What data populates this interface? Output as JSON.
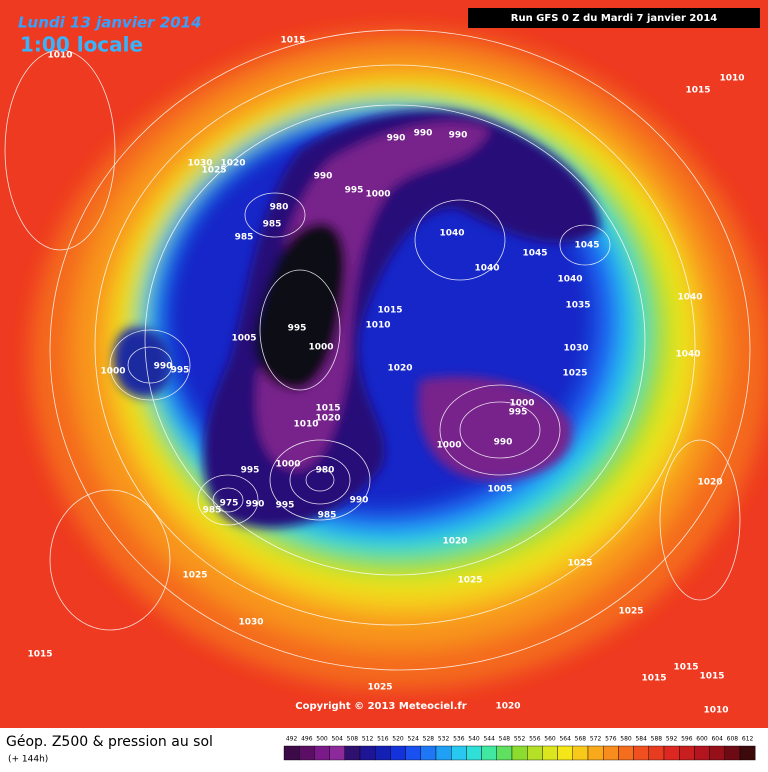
{
  "header": {
    "date": "Lundi 13 janvier 2014",
    "time": "1:00 locale",
    "run": "Run GFS 0 Z du Mardi 7 janvier 2014"
  },
  "copyright": "Copyright © 2013 Meteociel.fr",
  "footer": {
    "title": "Géop. Z500 & pression au sol",
    "subtitle": "(+ 144h)"
  },
  "legend": {
    "levels": [
      492,
      496,
      500,
      504,
      508,
      512,
      516,
      520,
      524,
      528,
      532,
      536,
      540,
      544,
      548,
      552,
      556,
      560,
      564,
      568,
      572,
      576,
      580,
      584,
      588,
      592,
      596,
      600,
      604,
      608,
      612
    ],
    "colors": [
      "#3c0a46",
      "#5a0f64",
      "#7a1a8a",
      "#8c2a9c",
      "#30106e",
      "#1e1496",
      "#1420b4",
      "#1432dc",
      "#1a50f0",
      "#1e78f5",
      "#20a0f5",
      "#28c8f0",
      "#30e0d8",
      "#40e8a0",
      "#60e060",
      "#8cdc30",
      "#b4e028",
      "#dce61e",
      "#f5e61a",
      "#f8c81a",
      "#f8aa1a",
      "#f88c1c",
      "#f46e1e",
      "#f05020",
      "#e83c20",
      "#dc2820",
      "#c81e1e",
      "#b4141e",
      "#96101a",
      "#6e0a14",
      "#3c0a0a"
    ]
  },
  "pressure_labels": [
    1015,
    1010,
    1015,
    1010,
    990,
    990,
    990,
    1030,
    1020,
    1025,
    990,
    995,
    1000,
    980,
    985,
    985,
    1040,
    1045,
    1040,
    1045,
    1040,
    1040,
    1035,
    1015,
    1010,
    995,
    1005,
    1000,
    1030,
    1040,
    1020,
    1000,
    990,
    995,
    1025,
    1000,
    995,
    1015,
    1020,
    1010,
    990,
    1000,
    1000,
    995,
    980,
    1020,
    1005,
    975,
    990,
    995,
    990,
    985,
    985,
    1020,
    1025,
    1025,
    1025,
    1025,
    1030,
    1015,
    1015,
    1015,
    1015,
    1025,
    1020,
    1010
  ]
}
